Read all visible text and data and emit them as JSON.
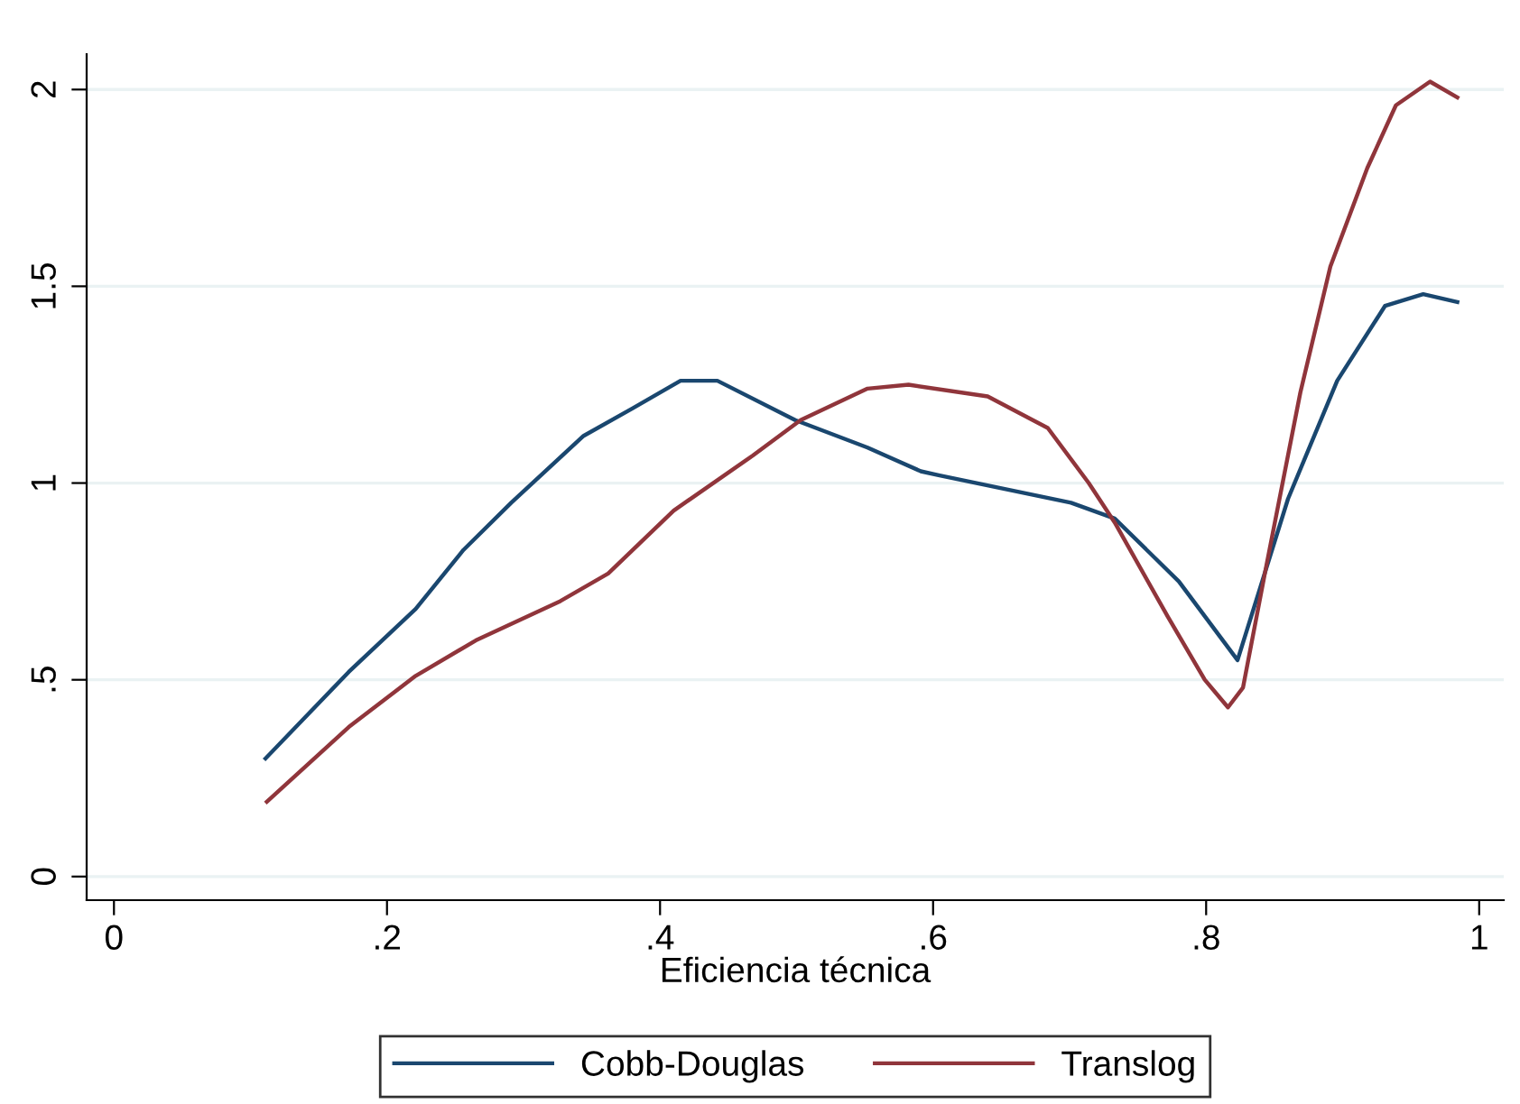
{
  "chart_data": {
    "type": "line",
    "xlabel": "Eficiencia técnica",
    "xlim": [
      -0.02,
      1.018
    ],
    "ylim": [
      -0.06,
      2.09
    ],
    "xticks": [
      0,
      {
        "value": 0.2,
        "label": ".2"
      },
      {
        "value": 0.4,
        "label": ".4"
      },
      {
        "value": 0.6,
        "label": ".6"
      },
      {
        "value": 0.8,
        "label": ".8"
      },
      1
    ],
    "yticks": [
      0,
      {
        "value": 0.5,
        "label": ".5"
      },
      1,
      {
        "value": 1.5,
        "label": "1.5"
      },
      2
    ],
    "grid": "y",
    "legend": "bottom",
    "marker": "none",
    "line_style": "solid",
    "series": [
      {
        "name": "Cobb-Douglas",
        "color": "#1a476f",
        "x": [
          0.111,
          0.172,
          0.221,
          0.256,
          0.291,
          0.344,
          0.38,
          0.415,
          0.442,
          0.499,
          0.552,
          0.591,
          0.604,
          0.701,
          0.733,
          0.78,
          0.823,
          0.86,
          0.896,
          0.931,
          0.959,
          0.984
        ],
        "values": [
          0.3,
          0.52,
          0.68,
          0.83,
          0.95,
          1.12,
          1.19,
          1.26,
          1.26,
          1.16,
          1.09,
          1.03,
          1.02,
          0.95,
          0.91,
          0.75,
          0.55,
          0.96,
          1.26,
          1.45,
          1.48,
          1.46
        ]
      },
      {
        "name": "Translog",
        "color": "#90353b",
        "x": [
          0.112,
          0.172,
          0.221,
          0.265,
          0.327,
          0.362,
          0.41,
          0.468,
          0.503,
          0.552,
          0.582,
          0.64,
          0.684,
          0.714,
          0.733,
          0.772,
          0.799,
          0.816,
          0.827,
          0.843,
          0.869,
          0.891,
          0.918,
          0.939,
          0.964,
          0.984
        ],
        "values": [
          0.19,
          0.38,
          0.51,
          0.6,
          0.7,
          0.77,
          0.93,
          1.07,
          1.16,
          1.24,
          1.25,
          1.22,
          1.14,
          1.0,
          0.9,
          0.66,
          0.5,
          0.43,
          0.48,
          0.77,
          1.23,
          1.55,
          1.8,
          1.96,
          2.02,
          1.98
        ]
      }
    ]
  }
}
